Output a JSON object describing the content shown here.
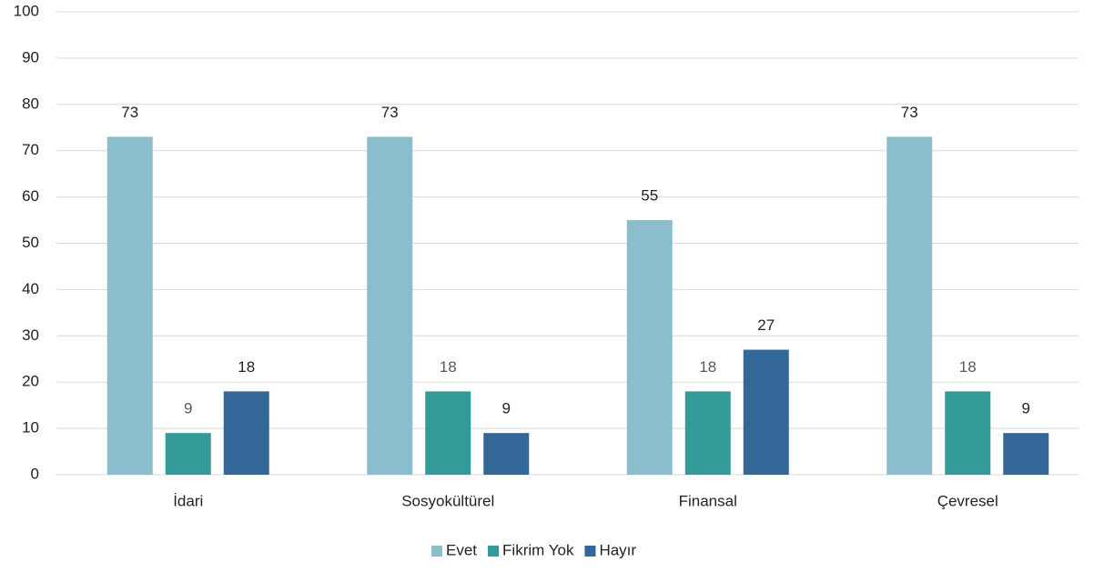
{
  "chart_data": {
    "type": "bar",
    "categories": [
      "İdari",
      "Sosyokültürel",
      "Finansal",
      "Çevresel"
    ],
    "series": [
      {
        "name": "Evet",
        "color": "#8bbdcd",
        "values": [
          73,
          73,
          55,
          73
        ]
      },
      {
        "name": "Fikrim Yok",
        "color": "#339a98",
        "values": [
          9,
          18,
          18,
          18
        ]
      },
      {
        "name": "Hayır",
        "color": "#336797",
        "values": [
          18,
          9,
          27,
          9
        ]
      }
    ],
    "ylim": [
      0,
      100
    ],
    "yticks": [
      0,
      10,
      20,
      30,
      40,
      50,
      60,
      70,
      80,
      90,
      100
    ],
    "grid": true,
    "legend": "bottom"
  }
}
